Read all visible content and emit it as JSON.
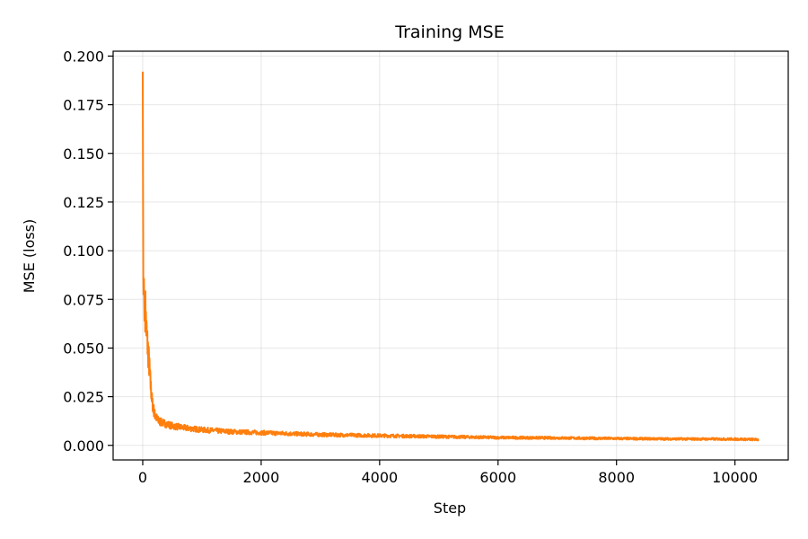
{
  "chart_data": {
    "type": "line",
    "title": "Training MSE",
    "xlabel": "Step",
    "ylabel": "MSE (loss)",
    "xlim": [
      -500,
      10900
    ],
    "ylim": [
      -0.0075,
      0.2025
    ],
    "xticks": [
      0,
      2000,
      4000,
      6000,
      8000,
      10000
    ],
    "xtick_labels": [
      "0",
      "2000",
      "4000",
      "6000",
      "8000",
      "10000"
    ],
    "yticks": [
      0.0,
      0.025,
      0.05,
      0.075,
      0.1,
      0.125,
      0.15,
      0.175,
      0.2
    ],
    "ytick_labels": [
      "0.000",
      "0.025",
      "0.050",
      "0.075",
      "0.100",
      "0.125",
      "0.150",
      "0.175",
      "0.200"
    ],
    "grid": true,
    "color": "#ff7f0e",
    "series": [
      {
        "x": [
          0,
          10,
          20,
          30,
          40,
          60,
          80,
          100,
          130,
          160,
          200,
          250,
          300,
          400,
          500,
          700,
          1000,
          1500,
          2000,
          3000,
          4000,
          5000,
          6000,
          7000,
          8000,
          9000,
          10000,
          10400
        ],
        "y": [
          0.192,
          0.075,
          0.088,
          0.064,
          0.072,
          0.06,
          0.052,
          0.045,
          0.032,
          0.022,
          0.016,
          0.013,
          0.012,
          0.011,
          0.01,
          0.009,
          0.008,
          0.007,
          0.0065,
          0.0055,
          0.005,
          0.0045,
          0.004,
          0.0038,
          0.0035,
          0.0033,
          0.0032,
          0.003
        ]
      }
    ]
  }
}
